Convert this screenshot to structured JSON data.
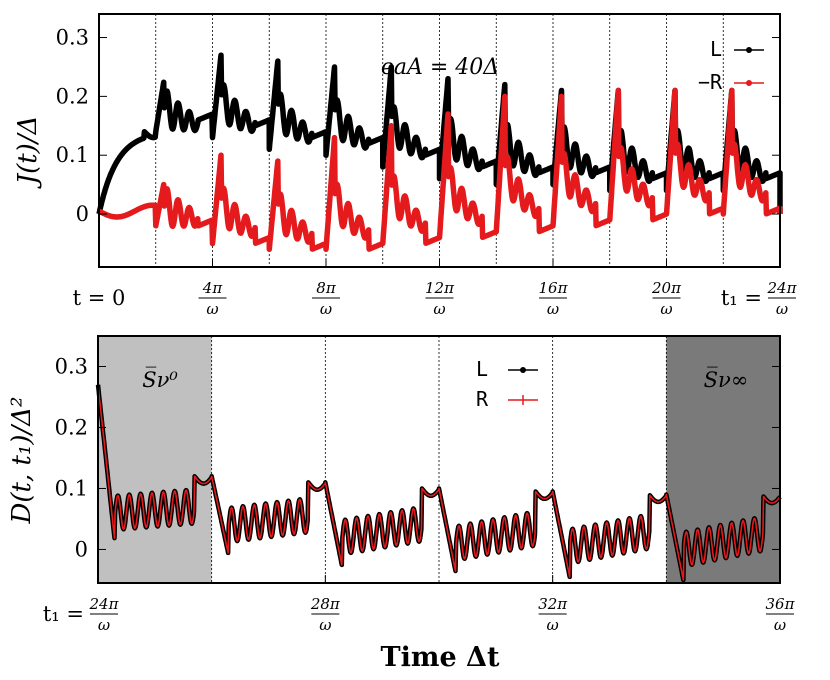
{
  "chart_data": [
    {
      "type": "line",
      "panel": "top",
      "ylabel": "J(t)/Δ",
      "annotation": "eaA = 40Δ",
      "xlim": [
        0,
        24
      ],
      "ylim": [
        -0.09,
        0.34
      ],
      "yticks": [
        {
          "value": 0,
          "label": "0"
        },
        {
          "value": 0.1,
          "label": "0.1"
        },
        {
          "value": 0.2,
          "label": "0.2"
        },
        {
          "value": 0.3,
          "label": "0.3"
        }
      ],
      "xtick_labels": [
        {
          "value": 0,
          "label": "t = 0"
        },
        {
          "value": 4,
          "num": "4π",
          "den": "ω"
        },
        {
          "value": 8,
          "num": "8π",
          "den": "ω"
        },
        {
          "value": 12,
          "num": "12π",
          "den": "ω"
        },
        {
          "value": 16,
          "num": "16π",
          "den": "ω"
        },
        {
          "value": 20,
          "num": "20π",
          "den": "ω"
        },
        {
          "value": 24,
          "prefix": "t₁ =",
          "num": "24π",
          "den": "ω"
        }
      ],
      "dotted_vlines": [
        2,
        4,
        6,
        8,
        10,
        12,
        14,
        16,
        18,
        20,
        22
      ],
      "legend": [
        {
          "label": "L",
          "color": "#000000"
        },
        {
          "label": "−R",
          "color": "#e41a1c"
        }
      ],
      "series": [
        {
          "name": "L",
          "color": "#000000",
          "peaks": [
            {
              "t": 2.3,
              "y": 0.23,
              "base": 0.14
            },
            {
              "t": 4.4,
              "y": 0.27,
              "base": 0.13
            },
            {
              "t": 6.4,
              "y": 0.26,
              "base": 0.11
            },
            {
              "t": 8.4,
              "y": 0.25,
              "base": 0.1
            },
            {
              "t": 10.4,
              "y": 0.25,
              "base": 0.08
            },
            {
              "t": 12.4,
              "y": 0.23,
              "base": 0.06
            },
            {
              "t": 14.4,
              "y": 0.22,
              "base": 0.05
            },
            {
              "t": 16.4,
              "y": 0.21,
              "base": 0.05
            },
            {
              "t": 18.4,
              "y": 0.21,
              "base": 0.04
            },
            {
              "t": 20.4,
              "y": 0.21,
              "base": 0.04
            },
            {
              "t": 22.4,
              "y": 0.21,
              "base": 0.04
            }
          ]
        },
        {
          "name": "−R",
          "color": "#e41a1c",
          "peaks": [
            {
              "t": 2.3,
              "y": 0.055,
              "base": -0.02
            },
            {
              "t": 4.4,
              "y": 0.1,
              "base": -0.05
            },
            {
              "t": 6.4,
              "y": 0.09,
              "base": -0.06
            },
            {
              "t": 8.4,
              "y": 0.13,
              "base": -0.06
            },
            {
              "t": 10.4,
              "y": 0.15,
              "base": -0.05
            },
            {
              "t": 12.4,
              "y": 0.17,
              "base": -0.04
            },
            {
              "t": 14.4,
              "y": 0.2,
              "base": -0.03
            },
            {
              "t": 16.4,
              "y": 0.2,
              "base": -0.02
            },
            {
              "t": 18.4,
              "y": 0.21,
              "base": -0.01
            },
            {
              "t": 20.4,
              "y": 0.21,
              "base": 0.0
            },
            {
              "t": 22.4,
              "y": 0.21,
              "base": 0.0
            }
          ]
        }
      ]
    },
    {
      "type": "line",
      "panel": "bottom",
      "ylabel": "D(t, t₁)/Δ²",
      "xlabel": "Time Δt",
      "xlim": [
        24,
        36
      ],
      "ylim": [
        -0.055,
        0.35
      ],
      "yticks": [
        {
          "value": 0,
          "label": "0"
        },
        {
          "value": 0.1,
          "label": "0.1"
        },
        {
          "value": 0.2,
          "label": "0.2"
        },
        {
          "value": 0.3,
          "label": "0.3"
        }
      ],
      "xtick_labels": [
        {
          "value": 24,
          "prefix": "t₁ =",
          "num": "24π",
          "den": "ω"
        },
        {
          "value": 28,
          "num": "28π",
          "den": "ω"
        },
        {
          "value": 32,
          "num": "32π",
          "den": "ω"
        },
        {
          "value": 36,
          "num": "36π",
          "den": "ω"
        }
      ],
      "dotted_vlines": [
        26,
        28,
        30,
        32,
        34
      ],
      "shaded_regions": [
        {
          "from": 24,
          "to": 26,
          "label": "S̅ν⁰",
          "color": "#c0c0c0"
        },
        {
          "from": 34,
          "to": 36,
          "label": "S̅ν∞",
          "color": "#7a7a7a"
        }
      ],
      "legend": [
        {
          "label": "L",
          "color": "#000000"
        },
        {
          "label": "R",
          "color": "#e41a1c"
        }
      ],
      "series_note": "L and R overlap",
      "series": [
        {
          "name": "L/R",
          "start": 0.27,
          "cycles": [
            {
              "from": 24.0,
              "to": 26.0,
              "trough": 0.01,
              "top": 0.12
            },
            {
              "from": 26.0,
              "to": 28.0,
              "trough": -0.01,
              "top": 0.11
            },
            {
              "from": 28.0,
              "to": 30.0,
              "trough": -0.03,
              "top": 0.1
            },
            {
              "from": 30.0,
              "to": 32.0,
              "trough": -0.04,
              "top": 0.095
            },
            {
              "from": 32.0,
              "to": 34.0,
              "trough": -0.045,
              "top": 0.09
            },
            {
              "from": 34.0,
              "to": 36.0,
              "trough": -0.05,
              "top": 0.088
            }
          ]
        }
      ]
    }
  ]
}
